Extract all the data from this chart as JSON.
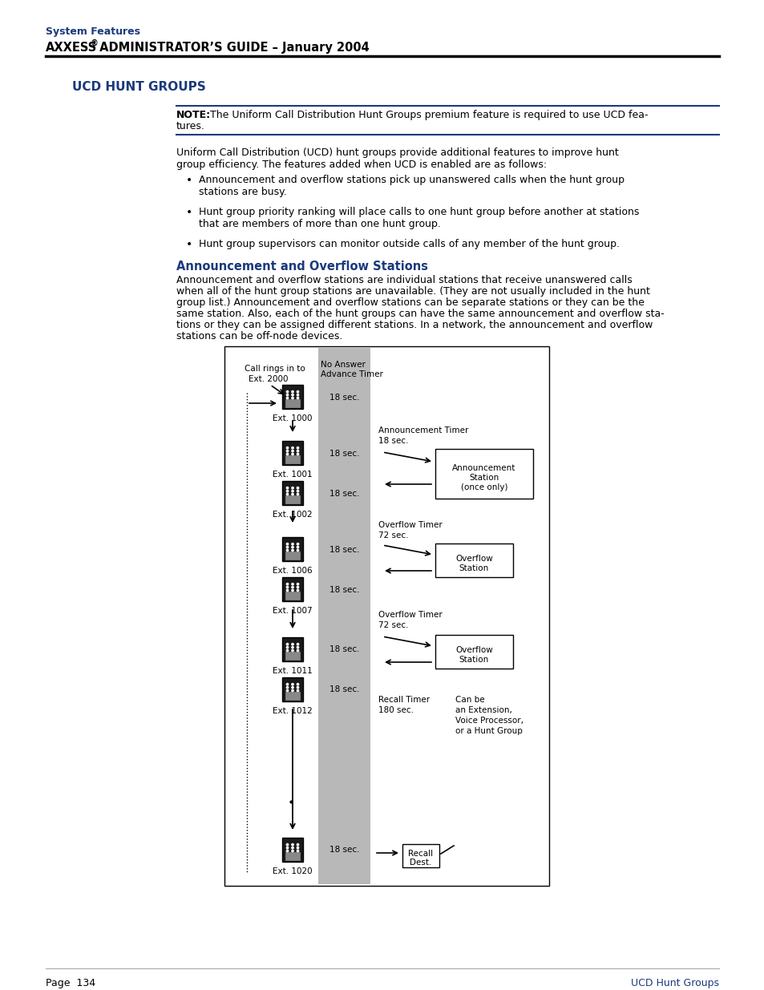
{
  "page_background": "#ffffff",
  "header_blue": "#1a3a7c",
  "text_color": "#000000",
  "note_line_color": "#1a3a7c",
  "diagram": {
    "gray_bar_color": "#b8b8b8"
  },
  "header1": "System Features",
  "header2_text": "AXXESS® ADMINISTRATOR’S GUIDE – January 2004",
  "section_title": "UCD HUNT GROUPS",
  "footer_left": "Page  134",
  "footer_right": "UCD Hunt Groups"
}
